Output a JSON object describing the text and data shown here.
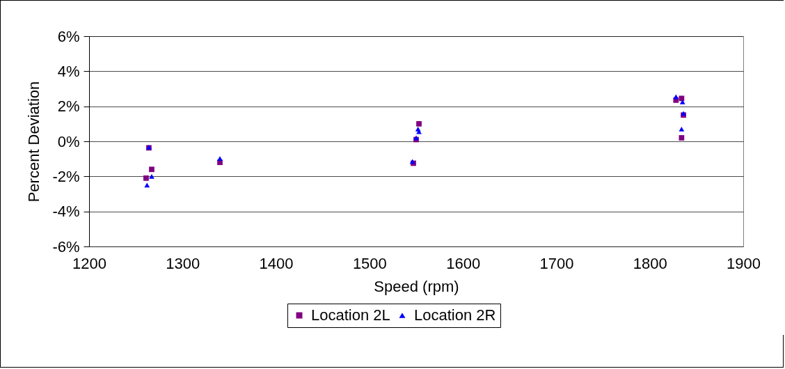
{
  "chart_data": {
    "type": "scatter",
    "xlabel": "Speed (rpm)",
    "ylabel": "Percent Deviation",
    "xlim": [
      1200,
      1900
    ],
    "xticks": [
      1200,
      1300,
      1400,
      1500,
      1600,
      1700,
      1800,
      1900
    ],
    "ylim": [
      -6,
      6
    ],
    "yticks": [
      {
        "value": -6,
        "label": "-6%"
      },
      {
        "value": -4,
        "label": "-4%"
      },
      {
        "value": -2,
        "label": "-2%"
      },
      {
        "value": 0,
        "label": "0%"
      },
      {
        "value": 2,
        "label": "2%"
      },
      {
        "value": 4,
        "label": "4%"
      },
      {
        "value": 6,
        "label": "6%"
      }
    ],
    "grid": "y",
    "legend": "bottom",
    "series": [
      {
        "name": "Location 2L",
        "color": "#800080",
        "marker": "square",
        "x": [
          1261,
          1267,
          1264,
          1340,
          1547,
          1550,
          1553,
          1828,
          1834,
          1836,
          1834
        ],
        "values": [
          -2.1,
          -1.6,
          -0.37,
          -1.2,
          -1.25,
          0.1,
          1.0,
          2.35,
          2.45,
          1.5,
          0.2
        ]
      },
      {
        "name": "Location 2R",
        "color": "#0000ff",
        "marker": "triangle",
        "x": [
          1264,
          1267,
          1262,
          1340,
          1546,
          1550,
          1553,
          1552,
          1828,
          1835,
          1836,
          1834
        ],
        "values": [
          -0.33,
          -2.0,
          -2.5,
          -0.98,
          -1.15,
          0.2,
          0.55,
          0.7,
          2.55,
          2.25,
          1.6,
          0.7
        ]
      }
    ]
  }
}
